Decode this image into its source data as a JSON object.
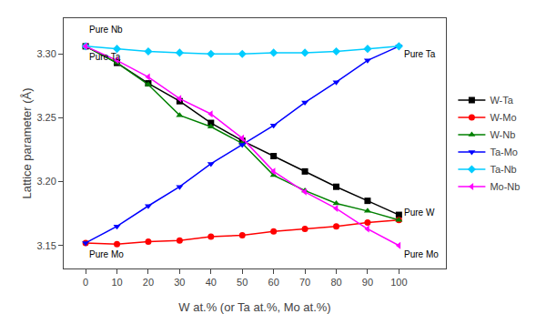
{
  "chart_data": {
    "type": "line",
    "xlabel": "W at.% (or Ta at.%, Mo at.%)",
    "ylabel": "Lattice parameter (Å)",
    "x": [
      0,
      10,
      20,
      30,
      40,
      50,
      60,
      70,
      80,
      90,
      100
    ],
    "series": [
      {
        "name": "W-Ta",
        "color": "#000000",
        "marker": "square",
        "values": [
          3.306,
          3.293,
          3.277,
          3.263,
          3.246,
          3.232,
          3.22,
          3.208,
          3.196,
          3.185,
          3.174
        ]
      },
      {
        "name": "W-Mo",
        "color": "#ff0000",
        "marker": "circle",
        "values": [
          3.152,
          3.151,
          3.153,
          3.154,
          3.157,
          3.158,
          3.161,
          3.163,
          3.165,
          3.168,
          3.17
        ]
      },
      {
        "name": "W-Nb",
        "color": "#008000",
        "marker": "triangle-up",
        "values": [
          3.306,
          3.293,
          3.276,
          3.252,
          3.243,
          3.23,
          3.205,
          3.193,
          3.183,
          3.177,
          3.17
        ]
      },
      {
        "name": "Ta-Mo",
        "color": "#0000ff",
        "marker": "triangle-down",
        "values": [
          3.152,
          3.165,
          3.181,
          3.196,
          3.214,
          3.229,
          3.244,
          3.262,
          3.278,
          3.295,
          3.306
        ]
      },
      {
        "name": "Ta-Nb",
        "color": "#00ccff",
        "marker": "diamond",
        "values": [
          3.306,
          3.304,
          3.302,
          3.301,
          3.3,
          3.3,
          3.301,
          3.301,
          3.302,
          3.304,
          3.306
        ]
      },
      {
        "name": "Mo-Nb",
        "color": "#ff00ff",
        "marker": "triangle-left",
        "values": [
          3.306,
          3.295,
          3.282,
          3.265,
          3.253,
          3.234,
          3.208,
          3.192,
          3.179,
          3.163,
          3.15
        ]
      }
    ],
    "xlim": [
      -7,
      115
    ],
    "ylim": [
      3.132,
      3.328
    ],
    "xticks": [
      0,
      10,
      20,
      30,
      40,
      50,
      60,
      70,
      80,
      90,
      100
    ],
    "yticks": [
      3.15,
      {
        "value": 3.2,
        "label": "3.20"
      },
      3.25,
      {
        "value": 3.3,
        "label": "3.30"
      }
    ],
    "annotations": [
      {
        "text": "Pure Nb",
        "x": 0.5,
        "y": 3.319
      },
      {
        "text": "Pure Ta",
        "x": 0.5,
        "y": 3.298
      },
      {
        "text": "Pure Ta",
        "x": 101,
        "y": 3.3
      },
      {
        "text": "Pure Mo",
        "x": 0.5,
        "y": 3.143
      },
      {
        "text": "Pure Mo",
        "x": 101,
        "y": 3.143
      },
      {
        "text": "Pure W",
        "x": 101,
        "y": 3.176
      }
    ],
    "grid": false,
    "legend": "right"
  }
}
